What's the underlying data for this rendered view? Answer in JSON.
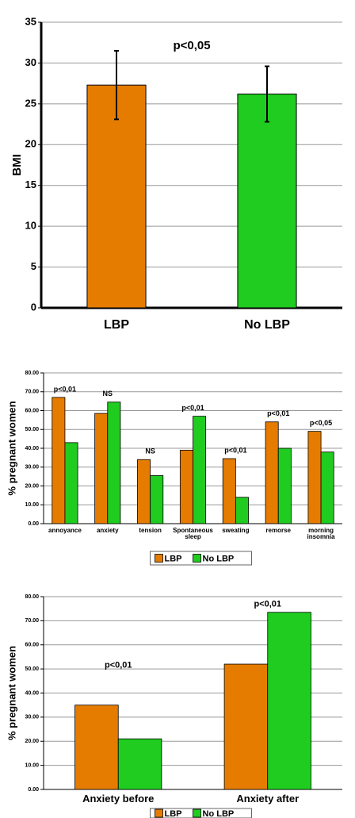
{
  "chart_data": [
    {
      "type": "bar",
      "y_label": "BMI",
      "annotation": "p<0,05",
      "categories": [
        "LBP",
        "No LBP"
      ],
      "values": [
        27.3,
        26.2
      ],
      "errors": [
        4.2,
        3.4
      ],
      "colors": [
        "#e57c00",
        "#1fcc1f"
      ],
      "ylim": [
        0,
        35
      ],
      "yticks": [
        0,
        5,
        10,
        15,
        20,
        25,
        30,
        35
      ],
      "grid": true
    },
    {
      "type": "bar",
      "y_label": "% pregnant women",
      "categories": [
        "annoyance",
        "anxiety",
        "tension",
        "Spontaneous sleep",
        "sweating",
        "remorse",
        "morning insomnia"
      ],
      "annotations": [
        "p<0,01",
        "NS",
        "NS",
        "p<0,01",
        "p<0,01",
        "p<0,01",
        "p<0,05"
      ],
      "series": [
        {
          "name": "LBP",
          "color": "#e57c00",
          "values": [
            67,
            58.5,
            34,
            39,
            34.5,
            54,
            49
          ]
        },
        {
          "name": "No LBP",
          "color": "#1fcc1f",
          "values": [
            43,
            64.5,
            25.5,
            57,
            14,
            40,
            38
          ]
        }
      ],
      "ylim": [
        0,
        80
      ],
      "yticks": [
        {
          "value": 0,
          "label": "0.00"
        },
        {
          "value": 10,
          "label": "10.00"
        },
        {
          "value": 20,
          "label": "20.00"
        },
        {
          "value": 30,
          "label": "30.00"
        },
        {
          "value": 40,
          "label": "40.00"
        },
        {
          "value": 50,
          "label": "50.00"
        },
        {
          "value": 60,
          "label": "60.00"
        },
        {
          "value": 70,
          "label": "70.00"
        },
        {
          "value": 80,
          "label": "80.00"
        }
      ],
      "grid": true,
      "legend": "bottom"
    },
    {
      "type": "bar",
      "y_label": "% pregnant women",
      "categories": [
        "Anxiety before",
        "Anxiety after"
      ],
      "annotations": [
        "p<0,01",
        "p<0,01"
      ],
      "series": [
        {
          "name": "LBP",
          "color": "#e57c00",
          "values": [
            35,
            52
          ]
        },
        {
          "name": "No LBP",
          "color": "#1fcc1f",
          "values": [
            21,
            73.5
          ]
        }
      ],
      "ylim": [
        0,
        80
      ],
      "yticks": [
        {
          "value": 0,
          "label": "0.00"
        },
        {
          "value": 10,
          "label": "10.00"
        },
        {
          "value": 20,
          "label": "20.00"
        },
        {
          "value": 30,
          "label": "30.00"
        },
        {
          "value": 40,
          "label": "40.00"
        },
        {
          "value": 50,
          "label": "50.00"
        },
        {
          "value": 60,
          "label": "60.00"
        },
        {
          "value": 70,
          "label": "70.00"
        },
        {
          "value": 80,
          "label": "80.00"
        }
      ],
      "grid": true,
      "legend": "bottom"
    }
  ]
}
